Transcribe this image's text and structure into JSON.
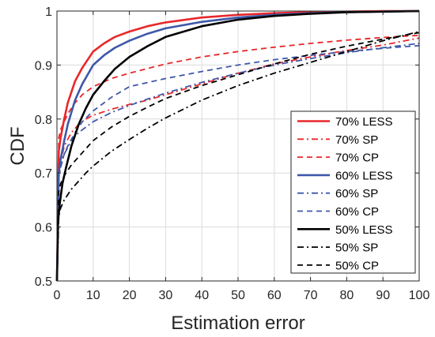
{
  "chart_data": {
    "type": "line",
    "xlabel": "Estimation error",
    "ylabel": "CDF",
    "xlim": [
      0,
      100
    ],
    "ylim": [
      0.5,
      1
    ],
    "xticks": [
      0,
      10,
      20,
      30,
      40,
      50,
      60,
      70,
      80,
      90,
      100
    ],
    "yticks": [
      0.5,
      0.6,
      0.7,
      0.8,
      0.9,
      1
    ],
    "ytick_labels": [
      "0.5",
      "0.6",
      "0.7",
      "0.8",
      "0.9",
      "1"
    ],
    "grid": true,
    "legend_position": "right",
    "series": [
      {
        "name": "70% LESS",
        "color": "#e8282b",
        "dash": "solid",
        "x": [
          0,
          0.5,
          1,
          2,
          3,
          5,
          7,
          10,
          13,
          16,
          20,
          25,
          30,
          40,
          50,
          60,
          70,
          80,
          90,
          100
        ],
        "y": [
          0.5,
          0.74,
          0.765,
          0.8,
          0.83,
          0.87,
          0.895,
          0.925,
          0.94,
          0.952,
          0.962,
          0.972,
          0.979,
          0.988,
          0.993,
          0.996,
          0.998,
          0.999,
          1.0,
          1.0
        ]
      },
      {
        "name": "70% SP",
        "color": "#e8282b",
        "dash": "dashdot",
        "x": [
          0,
          0.5,
          1,
          2,
          4,
          6,
          8,
          10,
          15,
          20,
          25,
          30,
          40,
          50,
          60,
          70,
          80,
          90,
          100
        ],
        "y": [
          0.5,
          0.69,
          0.72,
          0.75,
          0.775,
          0.79,
          0.8,
          0.807,
          0.818,
          0.827,
          0.835,
          0.845,
          0.865,
          0.885,
          0.902,
          0.915,
          0.927,
          0.937,
          0.95
        ]
      },
      {
        "name": "70% CP",
        "color": "#e8282b",
        "dash": "dashed",
        "x": [
          0,
          0.5,
          1,
          2,
          3,
          5,
          7,
          10,
          15,
          20,
          30,
          40,
          50,
          60,
          70,
          80,
          90,
          100
        ],
        "y": [
          0.5,
          0.765,
          0.78,
          0.795,
          0.81,
          0.83,
          0.845,
          0.86,
          0.875,
          0.885,
          0.902,
          0.915,
          0.925,
          0.933,
          0.94,
          0.946,
          0.951,
          0.955
        ]
      },
      {
        "name": "60% LESS",
        "color": "#3e58a8",
        "dash": "solid",
        "x": [
          0,
          0.5,
          1,
          2,
          3,
          5,
          7,
          10,
          13,
          16,
          20,
          25,
          30,
          40,
          50,
          60,
          70,
          80,
          90,
          100
        ],
        "y": [
          0.5,
          0.7,
          0.725,
          0.76,
          0.79,
          0.835,
          0.865,
          0.9,
          0.918,
          0.932,
          0.945,
          0.958,
          0.968,
          0.98,
          0.988,
          0.993,
          0.996,
          0.998,
          0.999,
          1.0
        ]
      },
      {
        "name": "60% SP",
        "color": "#3e58a8",
        "dash": "dashdot",
        "x": [
          0,
          0.5,
          1,
          2,
          4,
          6,
          8,
          10,
          15,
          20,
          25,
          30,
          40,
          50,
          60,
          70,
          80,
          90,
          100
        ],
        "y": [
          0.5,
          0.69,
          0.71,
          0.735,
          0.76,
          0.775,
          0.785,
          0.795,
          0.812,
          0.825,
          0.837,
          0.848,
          0.868,
          0.885,
          0.9,
          0.912,
          0.923,
          0.932,
          0.94
        ]
      },
      {
        "name": "60% CP",
        "color": "#3e58a8",
        "dash": "dashed",
        "x": [
          0,
          0.5,
          1,
          2,
          3,
          5,
          7,
          10,
          15,
          20,
          30,
          40,
          50,
          60,
          70,
          80,
          90,
          100
        ],
        "y": [
          0.5,
          0.7,
          0.715,
          0.735,
          0.75,
          0.775,
          0.795,
          0.815,
          0.84,
          0.86,
          0.875,
          0.888,
          0.9,
          0.91,
          0.918,
          0.925,
          0.931,
          0.936
        ]
      },
      {
        "name": "50% LESS",
        "color": "#000000",
        "dash": "solid",
        "x": [
          0,
          0.3,
          0.8,
          1.5,
          2.5,
          4,
          6,
          8,
          10,
          13,
          16,
          20,
          25,
          30,
          40,
          50,
          60,
          70,
          80,
          90,
          100
        ],
        "y": [
          0.5,
          0.61,
          0.645,
          0.68,
          0.71,
          0.75,
          0.79,
          0.82,
          0.845,
          0.87,
          0.893,
          0.915,
          0.935,
          0.952,
          0.972,
          0.984,
          0.991,
          0.995,
          0.998,
          0.999,
          1.0
        ]
      },
      {
        "name": "50% SP",
        "color": "#000000",
        "dash": "dashdot",
        "x": [
          0,
          0.5,
          1,
          2,
          4,
          6,
          8,
          10,
          15,
          20,
          25,
          30,
          40,
          50,
          60,
          70,
          80,
          90,
          100
        ],
        "y": [
          0.5,
          0.62,
          0.635,
          0.65,
          0.67,
          0.685,
          0.7,
          0.713,
          0.74,
          0.762,
          0.783,
          0.802,
          0.835,
          0.862,
          0.885,
          0.905,
          0.925,
          0.945,
          0.962
        ]
      },
      {
        "name": "50% CP",
        "color": "#000000",
        "dash": "dashed",
        "x": [
          0,
          0.5,
          1,
          2,
          4,
          6,
          8,
          10,
          15,
          20,
          25,
          30,
          40,
          50,
          60,
          70,
          80,
          90,
          100
        ],
        "y": [
          0.5,
          0.665,
          0.68,
          0.695,
          0.715,
          0.73,
          0.745,
          0.76,
          0.785,
          0.805,
          0.822,
          0.838,
          0.862,
          0.882,
          0.902,
          0.92,
          0.935,
          0.948,
          0.96
        ]
      }
    ]
  }
}
